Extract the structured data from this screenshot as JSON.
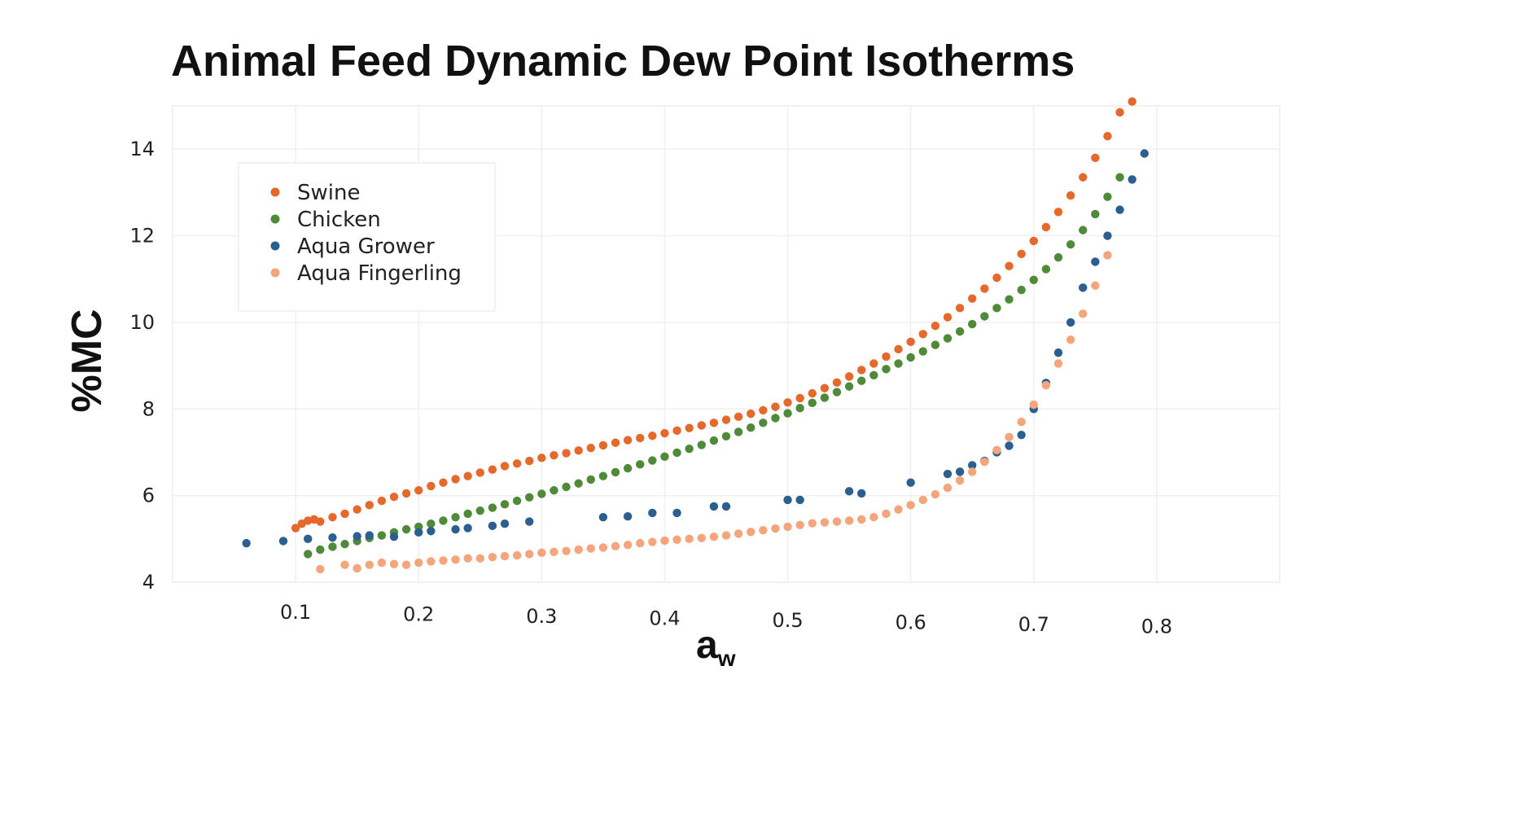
{
  "chart_data": {
    "type": "scatter",
    "title": "Animal Feed Dynamic Dew Point Isotherms",
    "xlabel": "a",
    "xlabel_subscript": "w",
    "ylabel": "%MC",
    "xlim": [
      0.0,
      0.9
    ],
    "ylim": [
      4,
      15
    ],
    "yticks": [
      4,
      6,
      8,
      10,
      12,
      14
    ],
    "xticks": [
      0.1,
      0.2,
      0.3,
      0.4,
      0.5,
      0.6,
      0.7,
      0.8
    ],
    "grid": true,
    "legend_position": "top-left",
    "series": [
      {
        "name": "Swine",
        "color": "#E5692B",
        "points": [
          [
            0.1,
            5.25
          ],
          [
            0.105,
            5.35
          ],
          [
            0.11,
            5.42
          ],
          [
            0.115,
            5.45
          ],
          [
            0.12,
            5.4
          ],
          [
            0.13,
            5.5
          ],
          [
            0.14,
            5.58
          ],
          [
            0.15,
            5.68
          ],
          [
            0.16,
            5.78
          ],
          [
            0.17,
            5.88
          ],
          [
            0.18,
            5.97
          ],
          [
            0.19,
            6.05
          ],
          [
            0.2,
            6.12
          ],
          [
            0.21,
            6.22
          ],
          [
            0.22,
            6.3
          ],
          [
            0.23,
            6.38
          ],
          [
            0.24,
            6.45
          ],
          [
            0.25,
            6.53
          ],
          [
            0.26,
            6.6
          ],
          [
            0.27,
            6.68
          ],
          [
            0.28,
            6.74
          ],
          [
            0.29,
            6.8
          ],
          [
            0.3,
            6.87
          ],
          [
            0.31,
            6.93
          ],
          [
            0.32,
            6.98
          ],
          [
            0.33,
            7.04
          ],
          [
            0.34,
            7.1
          ],
          [
            0.35,
            7.16
          ],
          [
            0.36,
            7.22
          ],
          [
            0.37,
            7.28
          ],
          [
            0.38,
            7.33
          ],
          [
            0.39,
            7.38
          ],
          [
            0.4,
            7.44
          ],
          [
            0.41,
            7.5
          ],
          [
            0.42,
            7.56
          ],
          [
            0.43,
            7.62
          ],
          [
            0.44,
            7.68
          ],
          [
            0.45,
            7.75
          ],
          [
            0.46,
            7.82
          ],
          [
            0.47,
            7.89
          ],
          [
            0.48,
            7.97
          ],
          [
            0.49,
            8.05
          ],
          [
            0.5,
            8.15
          ],
          [
            0.51,
            8.25
          ],
          [
            0.52,
            8.36
          ],
          [
            0.53,
            8.48
          ],
          [
            0.54,
            8.61
          ],
          [
            0.55,
            8.75
          ],
          [
            0.56,
            8.9
          ],
          [
            0.57,
            9.05
          ],
          [
            0.58,
            9.21
          ],
          [
            0.59,
            9.38
          ],
          [
            0.6,
            9.55
          ],
          [
            0.61,
            9.73
          ],
          [
            0.62,
            9.92
          ],
          [
            0.63,
            10.12
          ],
          [
            0.64,
            10.33
          ],
          [
            0.65,
            10.55
          ],
          [
            0.66,
            10.78
          ],
          [
            0.67,
            11.03
          ],
          [
            0.68,
            11.3
          ],
          [
            0.69,
            11.58
          ],
          [
            0.7,
            11.88
          ],
          [
            0.71,
            12.2
          ],
          [
            0.72,
            12.55
          ],
          [
            0.73,
            12.93
          ],
          [
            0.74,
            13.35
          ],
          [
            0.75,
            13.8
          ],
          [
            0.76,
            14.3
          ],
          [
            0.77,
            14.85
          ],
          [
            0.78,
            15.1
          ]
        ]
      },
      {
        "name": "Chicken",
        "color": "#4F8A3A",
        "points": [
          [
            0.11,
            4.65
          ],
          [
            0.12,
            4.75
          ],
          [
            0.13,
            4.82
          ],
          [
            0.14,
            4.88
          ],
          [
            0.15,
            4.95
          ],
          [
            0.16,
            5.02
          ],
          [
            0.17,
            5.08
          ],
          [
            0.18,
            5.15
          ],
          [
            0.19,
            5.22
          ],
          [
            0.2,
            5.28
          ],
          [
            0.21,
            5.35
          ],
          [
            0.22,
            5.42
          ],
          [
            0.23,
            5.5
          ],
          [
            0.24,
            5.58
          ],
          [
            0.25,
            5.65
          ],
          [
            0.26,
            5.72
          ],
          [
            0.27,
            5.8
          ],
          [
            0.28,
            5.88
          ],
          [
            0.29,
            5.96
          ],
          [
            0.3,
            6.04
          ],
          [
            0.31,
            6.12
          ],
          [
            0.32,
            6.2
          ],
          [
            0.33,
            6.28
          ],
          [
            0.34,
            6.37
          ],
          [
            0.35,
            6.45
          ],
          [
            0.36,
            6.54
          ],
          [
            0.37,
            6.63
          ],
          [
            0.38,
            6.72
          ],
          [
            0.39,
            6.81
          ],
          [
            0.4,
            6.9
          ],
          [
            0.41,
            6.99
          ],
          [
            0.42,
            7.08
          ],
          [
            0.43,
            7.17
          ],
          [
            0.44,
            7.27
          ],
          [
            0.45,
            7.37
          ],
          [
            0.46,
            7.47
          ],
          [
            0.47,
            7.57
          ],
          [
            0.48,
            7.68
          ],
          [
            0.49,
            7.79
          ],
          [
            0.5,
            7.9
          ],
          [
            0.51,
            8.02
          ],
          [
            0.52,
            8.14
          ],
          [
            0.53,
            8.26
          ],
          [
            0.54,
            8.39
          ],
          [
            0.55,
            8.52
          ],
          [
            0.56,
            8.65
          ],
          [
            0.57,
            8.78
          ],
          [
            0.58,
            8.92
          ],
          [
            0.59,
            9.05
          ],
          [
            0.6,
            9.19
          ],
          [
            0.61,
            9.33
          ],
          [
            0.62,
            9.48
          ],
          [
            0.63,
            9.63
          ],
          [
            0.64,
            9.79
          ],
          [
            0.65,
            9.96
          ],
          [
            0.66,
            10.14
          ],
          [
            0.67,
            10.33
          ],
          [
            0.68,
            10.53
          ],
          [
            0.69,
            10.75
          ],
          [
            0.7,
            10.98
          ],
          [
            0.71,
            11.23
          ],
          [
            0.72,
            11.5
          ],
          [
            0.73,
            11.8
          ],
          [
            0.74,
            12.13
          ],
          [
            0.75,
            12.5
          ],
          [
            0.76,
            12.9
          ],
          [
            0.77,
            13.35
          ]
        ]
      },
      {
        "name": "Aqua Grower",
        "color": "#2A5F8F",
        "points": [
          [
            0.06,
            4.9
          ],
          [
            0.09,
            4.95
          ],
          [
            0.11,
            5.0
          ],
          [
            0.13,
            5.03
          ],
          [
            0.15,
            5.06
          ],
          [
            0.16,
            5.08
          ],
          [
            0.18,
            5.05
          ],
          [
            0.2,
            5.15
          ],
          [
            0.21,
            5.18
          ],
          [
            0.23,
            5.22
          ],
          [
            0.24,
            5.25
          ],
          [
            0.26,
            5.3
          ],
          [
            0.27,
            5.35
          ],
          [
            0.29,
            5.4
          ],
          [
            0.35,
            5.5
          ],
          [
            0.37,
            5.52
          ],
          [
            0.39,
            5.6
          ],
          [
            0.41,
            5.6
          ],
          [
            0.44,
            5.75
          ],
          [
            0.45,
            5.75
          ],
          [
            0.5,
            5.9
          ],
          [
            0.51,
            5.9
          ],
          [
            0.55,
            6.1
          ],
          [
            0.56,
            6.05
          ],
          [
            0.6,
            6.3
          ],
          [
            0.63,
            6.5
          ],
          [
            0.64,
            6.55
          ],
          [
            0.65,
            6.7
          ],
          [
            0.66,
            6.8
          ],
          [
            0.67,
            7.0
          ],
          [
            0.68,
            7.15
          ],
          [
            0.69,
            7.4
          ],
          [
            0.7,
            8.0
          ],
          [
            0.71,
            8.6
          ],
          [
            0.72,
            9.3
          ],
          [
            0.73,
            10.0
          ],
          [
            0.74,
            10.8
          ],
          [
            0.75,
            11.4
          ],
          [
            0.76,
            12.0
          ],
          [
            0.77,
            12.6
          ],
          [
            0.78,
            13.3
          ],
          [
            0.79,
            13.9
          ]
        ]
      },
      {
        "name": "Aqua Fingerling",
        "color": "#F4A57C",
        "points": [
          [
            0.12,
            4.3
          ],
          [
            0.14,
            4.4
          ],
          [
            0.15,
            4.32
          ],
          [
            0.16,
            4.4
          ],
          [
            0.17,
            4.45
          ],
          [
            0.18,
            4.42
          ],
          [
            0.19,
            4.4
          ],
          [
            0.2,
            4.45
          ],
          [
            0.21,
            4.48
          ],
          [
            0.22,
            4.5
          ],
          [
            0.23,
            4.52
          ],
          [
            0.24,
            4.55
          ],
          [
            0.25,
            4.55
          ],
          [
            0.26,
            4.58
          ],
          [
            0.27,
            4.6
          ],
          [
            0.28,
            4.62
          ],
          [
            0.29,
            4.65
          ],
          [
            0.3,
            4.68
          ],
          [
            0.31,
            4.7
          ],
          [
            0.32,
            4.72
          ],
          [
            0.33,
            4.75
          ],
          [
            0.34,
            4.78
          ],
          [
            0.35,
            4.8
          ],
          [
            0.36,
            4.83
          ],
          [
            0.37,
            4.86
          ],
          [
            0.38,
            4.9
          ],
          [
            0.39,
            4.93
          ],
          [
            0.4,
            4.96
          ],
          [
            0.41,
            4.98
          ],
          [
            0.42,
            5.0
          ],
          [
            0.43,
            5.02
          ],
          [
            0.44,
            5.05
          ],
          [
            0.45,
            5.08
          ],
          [
            0.46,
            5.12
          ],
          [
            0.47,
            5.16
          ],
          [
            0.48,
            5.2
          ],
          [
            0.49,
            5.24
          ],
          [
            0.5,
            5.28
          ],
          [
            0.51,
            5.32
          ],
          [
            0.52,
            5.36
          ],
          [
            0.53,
            5.38
          ],
          [
            0.54,
            5.4
          ],
          [
            0.55,
            5.42
          ],
          [
            0.56,
            5.45
          ],
          [
            0.57,
            5.5
          ],
          [
            0.58,
            5.58
          ],
          [
            0.59,
            5.68
          ],
          [
            0.6,
            5.78
          ],
          [
            0.61,
            5.9
          ],
          [
            0.62,
            6.03
          ],
          [
            0.63,
            6.18
          ],
          [
            0.64,
            6.35
          ],
          [
            0.65,
            6.55
          ],
          [
            0.66,
            6.78
          ],
          [
            0.67,
            7.05
          ],
          [
            0.68,
            7.35
          ],
          [
            0.69,
            7.7
          ],
          [
            0.7,
            8.1
          ],
          [
            0.71,
            8.55
          ],
          [
            0.72,
            9.05
          ],
          [
            0.73,
            9.6
          ],
          [
            0.74,
            10.2
          ],
          [
            0.75,
            10.85
          ],
          [
            0.76,
            11.55
          ]
        ]
      }
    ]
  }
}
